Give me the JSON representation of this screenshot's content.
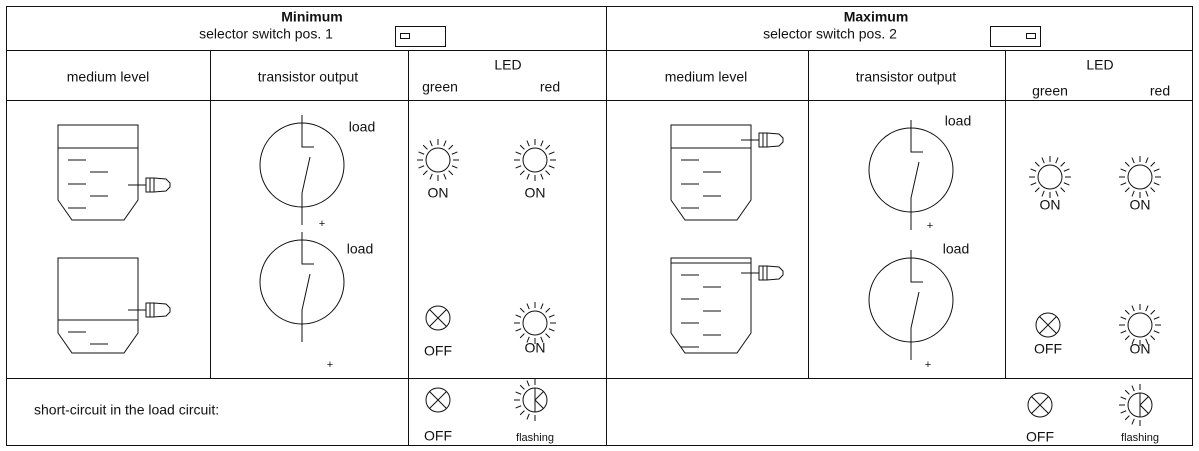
{
  "sections": [
    {
      "title": "Minimum",
      "selector": "selector switch pos. 1",
      "columns": {
        "level": "medium level",
        "output": "transistor output",
        "led": "LED",
        "green": "green",
        "red": "red"
      },
      "rows": [
        {
          "load": "load",
          "supply": "+",
          "green": "ON",
          "red": "ON"
        },
        {
          "load": "load",
          "supply": "+",
          "green": "OFF",
          "red": "ON"
        }
      ],
      "short_circuit": {
        "green": "OFF",
        "red": "flashing"
      }
    },
    {
      "title": "Maximum",
      "selector": "selector switch pos. 2",
      "columns": {
        "level": "medium level",
        "output": "transistor output",
        "led": "LED",
        "green": "green",
        "red": "red"
      },
      "rows": [
        {
          "load": "load",
          "supply": "+",
          "green": "ON",
          "red": "ON"
        },
        {
          "load": "load",
          "supply": "+",
          "green": "OFF",
          "red": "ON"
        }
      ],
      "short_circuit": {
        "green": "OFF",
        "red": "flashing"
      }
    }
  ],
  "short_circuit_label": "short-circuit in the load circuit:"
}
